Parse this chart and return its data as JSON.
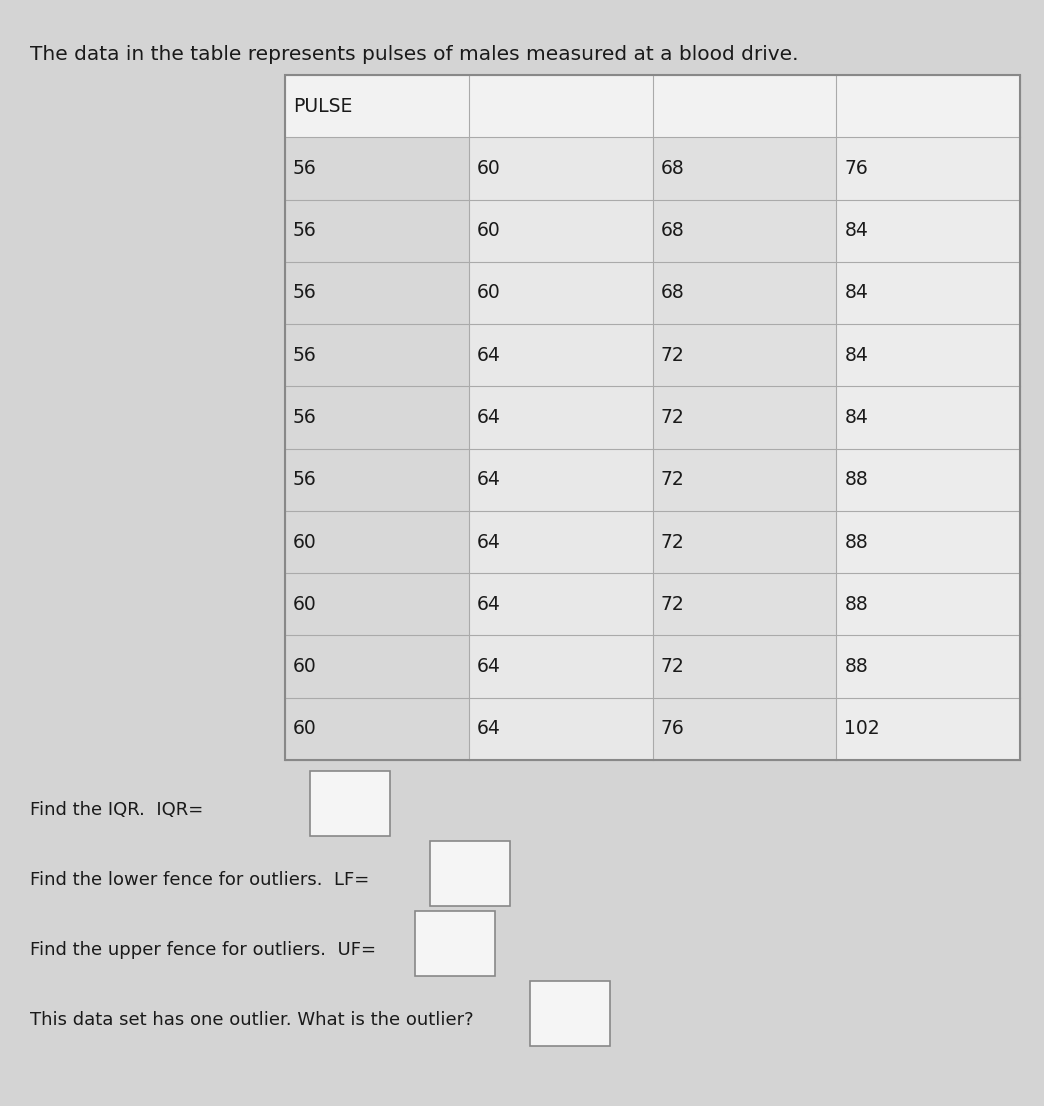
{
  "title": "The data in the table represents pulses of males measured at a blood drive.",
  "title_fontsize": 14.5,
  "table_header": "PULSE",
  "table_data": [
    [
      "56",
      "60",
      "68",
      "76"
    ],
    [
      "56",
      "60",
      "68",
      "84"
    ],
    [
      "56",
      "60",
      "68",
      "84"
    ],
    [
      "56",
      "64",
      "72",
      "84"
    ],
    [
      "56",
      "64",
      "72",
      "84"
    ],
    [
      "56",
      "64",
      "72",
      "88"
    ],
    [
      "60",
      "64",
      "72",
      "88"
    ],
    [
      "60",
      "64",
      "72",
      "88"
    ],
    [
      "60",
      "64",
      "72",
      "88"
    ],
    [
      "60",
      "64",
      "76",
      "102"
    ]
  ],
  "questions": [
    "Find the IQR.  IQR=",
    "Find the lower fence for outliers.  LF=",
    "Find the upper fence for outliers.  UF=",
    "This data set has one outlier. What is the outlier?"
  ],
  "bg_color": "#c8c8c8",
  "page_bg": "#d4d4d4",
  "table_outer_bg": "#f0f0f0",
  "cell_col0_bg": "#d8d8d8",
  "cell_col1_bg": "#e8e8e8",
  "cell_col2_bg": "#e0e0e0",
  "cell_col3_bg": "#ececec",
  "header_bg": "#f2f2f2",
  "text_color": "#1a1a1a",
  "grid_color": "#aaaaaa",
  "border_color": "#888888",
  "box_fill": "#f5f5f5",
  "box_border": "#888888",
  "question_fontsize": 13,
  "cell_fontsize": 13.5
}
